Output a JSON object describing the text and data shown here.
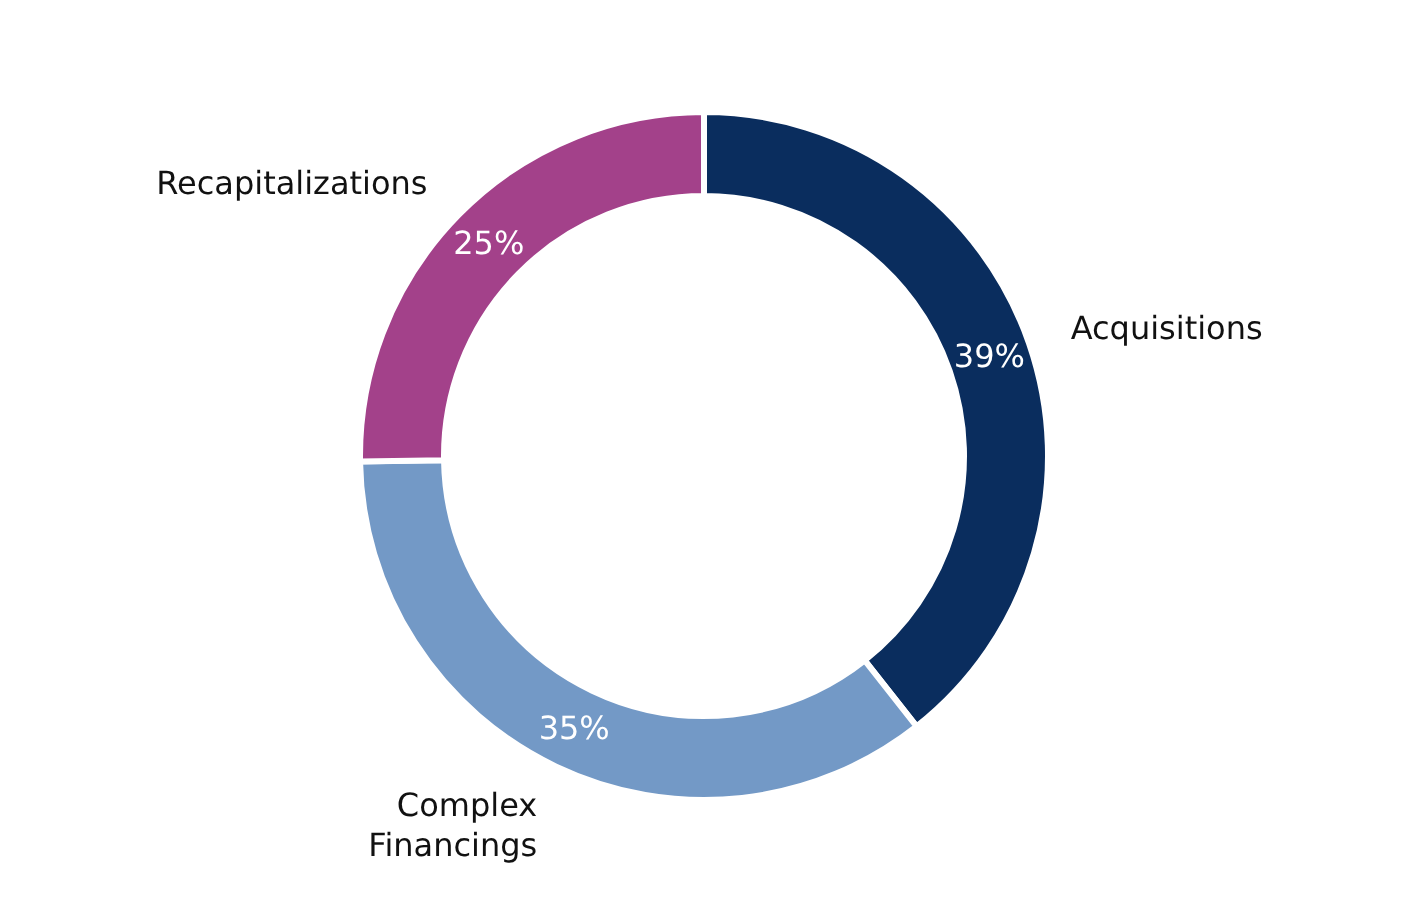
{
  "chart_data": {
    "type": "donut",
    "categories": [
      "Acquisitions",
      "Complex Financings",
      "Recapitalizations"
    ],
    "values": [
      39,
      35,
      25
    ],
    "colors": [
      "#0a2d5e",
      "#7399c6",
      "#a3418a"
    ],
    "value_labels": [
      "39%",
      "35%",
      "25%"
    ],
    "legend": false
  }
}
